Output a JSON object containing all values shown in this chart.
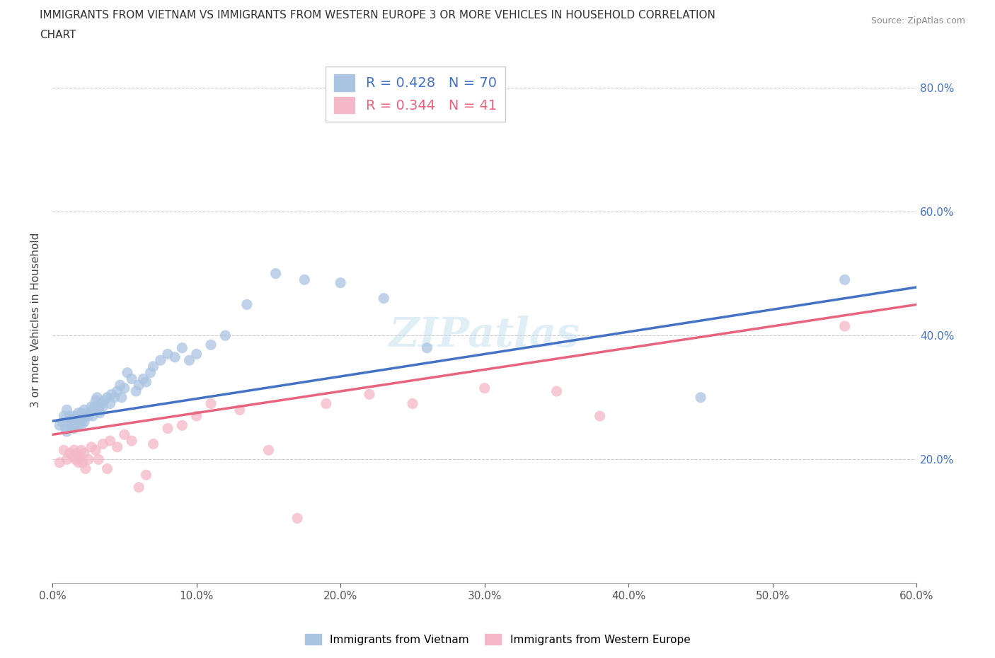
{
  "title_line1": "IMMIGRANTS FROM VIETNAM VS IMMIGRANTS FROM WESTERN EUROPE 3 OR MORE VEHICLES IN HOUSEHOLD CORRELATION",
  "title_line2": "CHART",
  "source_text": "Source: ZipAtlas.com",
  "ylabel": "3 or more Vehicles in Household",
  "xlim": [
    0.0,
    0.6
  ],
  "ylim": [
    0.0,
    0.85
  ],
  "xticks": [
    0.0,
    0.1,
    0.2,
    0.3,
    0.4,
    0.5,
    0.6
  ],
  "yticks": [
    0.2,
    0.4,
    0.6,
    0.8
  ],
  "legend1_label": "R = 0.428   N = 70",
  "legend2_label": "R = 0.344   N = 41",
  "color_vietnam": "#aac4e2",
  "color_europe": "#f4b8c8",
  "line_color_vietnam": "#4472c4",
  "line_color_europe": "#e8637e",
  "ytick_color": "#4472c4",
  "xtick_color": "#555555",
  "vietnam_x": [
    0.005,
    0.007,
    0.008,
    0.009,
    0.01,
    0.01,
    0.011,
    0.012,
    0.013,
    0.014,
    0.015,
    0.015,
    0.016,
    0.016,
    0.017,
    0.018,
    0.018,
    0.019,
    0.02,
    0.02,
    0.021,
    0.022,
    0.022,
    0.023,
    0.024,
    0.025,
    0.026,
    0.027,
    0.028,
    0.029,
    0.03,
    0.03,
    0.031,
    0.032,
    0.033,
    0.034,
    0.035,
    0.036,
    0.038,
    0.04,
    0.041,
    0.043,
    0.045,
    0.047,
    0.048,
    0.05,
    0.052,
    0.055,
    0.058,
    0.06,
    0.063,
    0.065,
    0.068,
    0.07,
    0.075,
    0.08,
    0.085,
    0.09,
    0.095,
    0.1,
    0.11,
    0.12,
    0.135,
    0.155,
    0.175,
    0.2,
    0.23,
    0.26,
    0.45,
    0.55
  ],
  "vietnam_y": [
    0.255,
    0.26,
    0.27,
    0.25,
    0.245,
    0.28,
    0.26,
    0.27,
    0.255,
    0.265,
    0.25,
    0.27,
    0.255,
    0.265,
    0.26,
    0.255,
    0.275,
    0.26,
    0.255,
    0.275,
    0.265,
    0.26,
    0.28,
    0.27,
    0.275,
    0.27,
    0.275,
    0.285,
    0.27,
    0.285,
    0.28,
    0.295,
    0.3,
    0.285,
    0.275,
    0.29,
    0.285,
    0.295,
    0.3,
    0.29,
    0.305,
    0.3,
    0.31,
    0.32,
    0.3,
    0.315,
    0.34,
    0.33,
    0.31,
    0.32,
    0.33,
    0.325,
    0.34,
    0.35,
    0.36,
    0.37,
    0.365,
    0.38,
    0.36,
    0.37,
    0.385,
    0.4,
    0.45,
    0.5,
    0.49,
    0.485,
    0.46,
    0.38,
    0.3,
    0.49
  ],
  "europe_x": [
    0.005,
    0.008,
    0.01,
    0.012,
    0.014,
    0.015,
    0.016,
    0.017,
    0.018,
    0.019,
    0.02,
    0.021,
    0.022,
    0.023,
    0.025,
    0.027,
    0.03,
    0.032,
    0.035,
    0.038,
    0.04,
    0.045,
    0.05,
    0.055,
    0.06,
    0.065,
    0.07,
    0.08,
    0.09,
    0.1,
    0.11,
    0.13,
    0.15,
    0.17,
    0.19,
    0.22,
    0.25,
    0.3,
    0.35,
    0.38,
    0.55
  ],
  "europe_y": [
    0.195,
    0.215,
    0.2,
    0.21,
    0.205,
    0.215,
    0.2,
    0.21,
    0.195,
    0.205,
    0.215,
    0.195,
    0.21,
    0.185,
    0.2,
    0.22,
    0.215,
    0.2,
    0.225,
    0.185,
    0.23,
    0.22,
    0.24,
    0.23,
    0.155,
    0.175,
    0.225,
    0.25,
    0.255,
    0.27,
    0.29,
    0.28,
    0.215,
    0.105,
    0.29,
    0.305,
    0.29,
    0.315,
    0.31,
    0.27,
    0.415
  ],
  "line1_x0": 0.0,
  "line1_y0": 0.262,
  "line1_x1": 0.6,
  "line1_y1": 0.478,
  "line2_x0": 0.0,
  "line2_y0": 0.24,
  "line2_x1": 0.6,
  "line2_y1": 0.45,
  "watermark_text": "ZIPatlas",
  "bottom_legend_label1": "Immigrants from Vietnam",
  "bottom_legend_label2": "Immigrants from Western Europe"
}
